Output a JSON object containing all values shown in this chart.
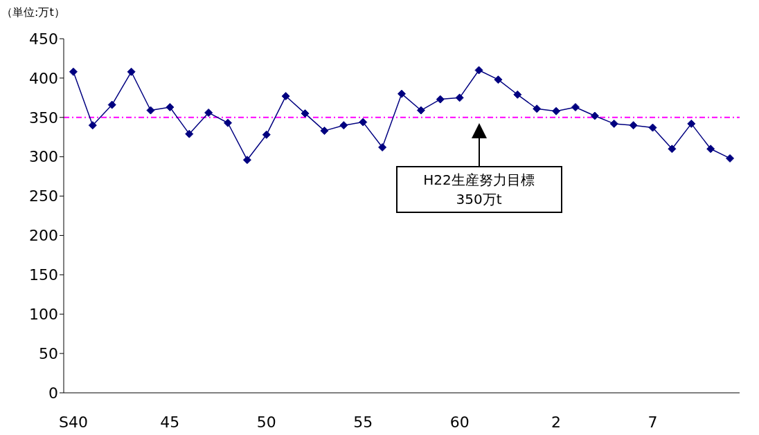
{
  "chart_data": {
    "type": "line",
    "ylabel": "（単位:万t）",
    "categories": [
      "S40",
      null,
      null,
      null,
      null,
      "45",
      null,
      null,
      null,
      null,
      "50",
      null,
      null,
      null,
      null,
      "55",
      null,
      null,
      null,
      null,
      "60",
      null,
      null,
      null,
      null,
      "2",
      null,
      null,
      null,
      null,
      "7",
      null,
      null,
      null,
      null
    ],
    "series": [
      {
        "color": "#000080",
        "values": [
          408,
          340,
          366,
          408,
          359,
          363,
          329,
          356,
          343,
          296,
          328,
          377,
          355,
          333,
          340,
          344,
          312,
          380,
          359,
          373,
          375,
          410,
          398,
          379,
          361,
          358,
          363,
          352,
          342,
          340,
          337,
          310,
          342,
          310,
          298
        ]
      }
    ],
    "ylim": [
      0,
      450
    ],
    "yticks": [
      0,
      50,
      100,
      150,
      200,
      250,
      300,
      350,
      400,
      450
    ],
    "grid": false,
    "legend": false,
    "marker": "diamond",
    "line_style": "solid",
    "ref_lines": [
      {
        "axis": "y",
        "value": 350,
        "color": "#ff00ff",
        "line_style": "dashdot"
      }
    ],
    "annotations": [
      "H22生産努力目標\n350万t"
    ]
  }
}
